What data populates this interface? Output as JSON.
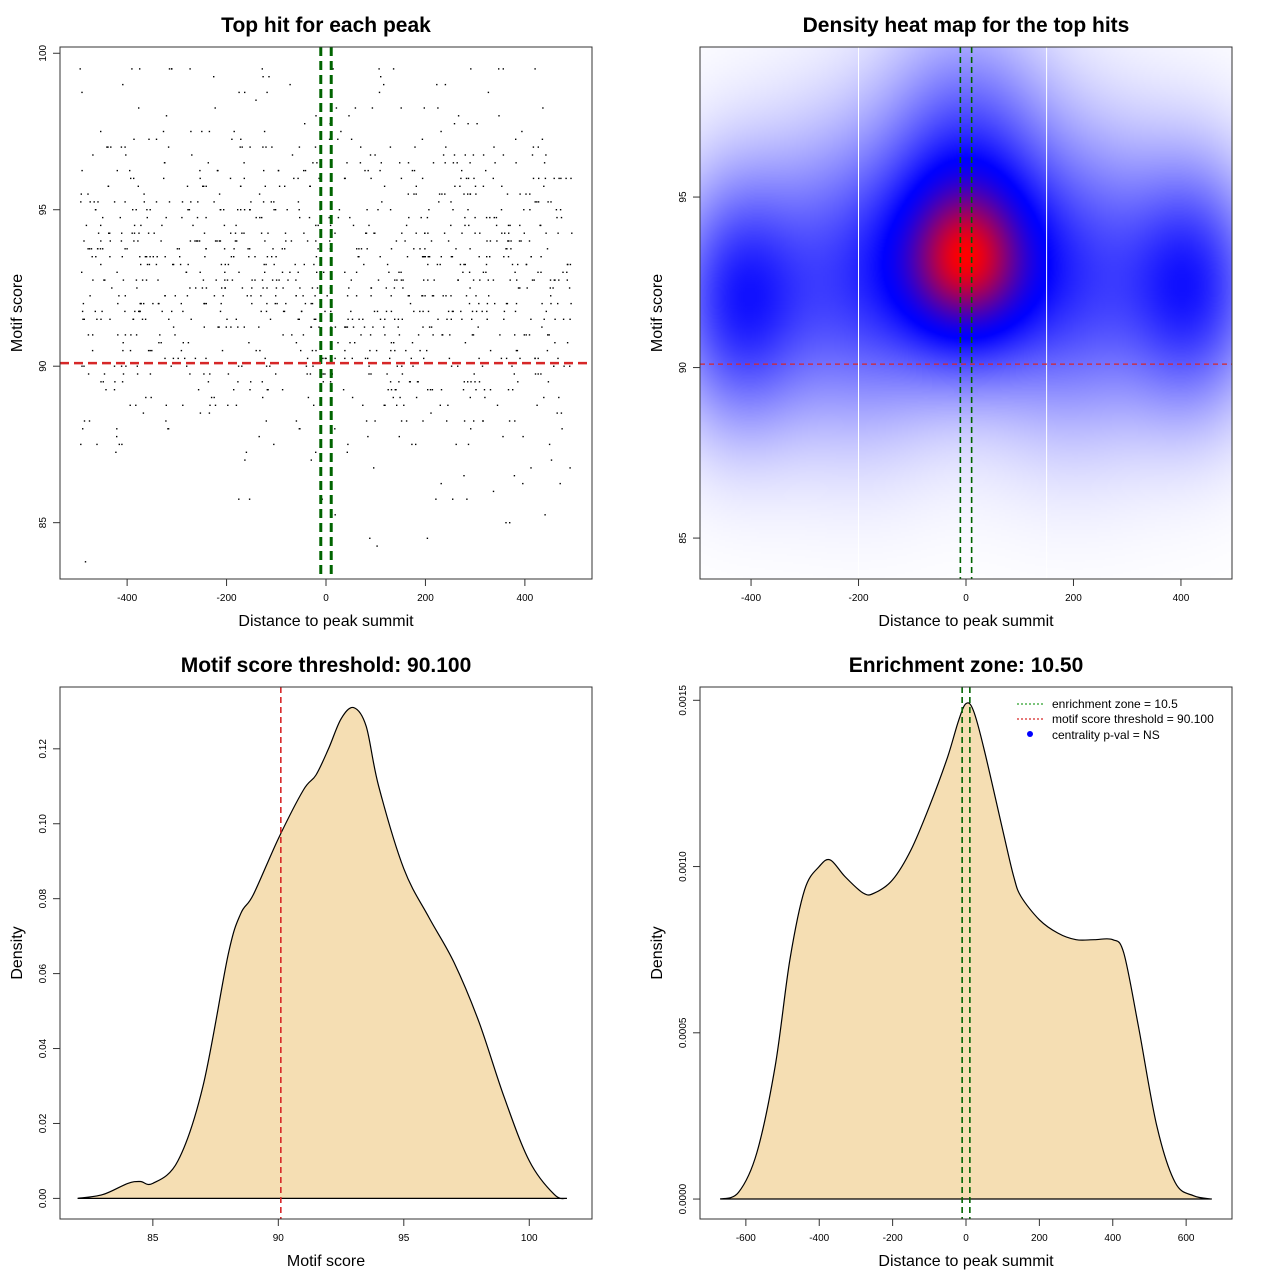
{
  "chart_data": [
    {
      "type": "scatter",
      "title": "Top hit for each peak",
      "xlabel": "Distance to peak summit",
      "ylabel": "Motif score",
      "xlim": [
        -535,
        535
      ],
      "ylim": [
        83.2,
        100.2
      ],
      "xticks": [
        "-400",
        "-200",
        "0",
        "200",
        "400"
      ],
      "xtick_values": [
        -400,
        -200,
        0,
        200,
        400
      ],
      "yticks": [
        "85",
        "90",
        "95",
        "100"
      ],
      "ytick_values": [
        85,
        90,
        95,
        100
      ],
      "n_points": 1100,
      "x_range": [
        -495,
        495
      ],
      "y_range": [
        83.8,
        99.4
      ],
      "center_lines_x": [
        -10.5,
        10.5
      ],
      "center_line_color": "#006400",
      "threshold_y": 90.1,
      "threshold_color": "#d62728"
    },
    {
      "type": "heatmap",
      "title": "Density heat map for the top hits",
      "xlabel": "Distance to peak summit",
      "ylabel": "Motif score",
      "xlim": [
        -495,
        495
      ],
      "ylim": [
        83.8,
        99.4
      ],
      "xticks": [
        "-400",
        "-200",
        "0",
        "200",
        "400"
      ],
      "xtick_values": [
        -400,
        -200,
        0,
        200,
        400
      ],
      "yticks": [
        "85",
        "90",
        "95"
      ],
      "ytick_values": [
        85,
        90,
        95
      ],
      "colormap": [
        "#ffffff",
        "#0000ff",
        "#ff0000"
      ],
      "hotspots": [
        {
          "x": 0,
          "y": 93.0,
          "weight": 1.0,
          "sx": 90,
          "sy": 1.8
        },
        {
          "x": -420,
          "y": 92.0,
          "weight": 0.55,
          "sx": 80,
          "sy": 2.2
        },
        {
          "x": 420,
          "y": 92.4,
          "weight": 0.55,
          "sx": 80,
          "sy": 2.2
        },
        {
          "x": -200,
          "y": 92.6,
          "weight": 0.45,
          "sx": 120,
          "sy": 2.6
        },
        {
          "x": 200,
          "y": 92.6,
          "weight": 0.45,
          "sx": 120,
          "sy": 2.6
        },
        {
          "x": 0,
          "y": 96.0,
          "weight": 0.4,
          "sx": 100,
          "sy": 2.4
        }
      ],
      "white_lines_x": [
        -200,
        150
      ],
      "center_lines_x": [
        -10.5,
        10.5
      ],
      "center_line_color": "#006400",
      "threshold_y": 90.1,
      "threshold_color": "#d62728"
    },
    {
      "type": "area",
      "title": "Motif score threshold: 90.100",
      "xlabel": "Motif score",
      "ylabel": "Density",
      "xlim": [
        81.3,
        102.5
      ],
      "ylim": [
        -0.0055,
        0.1365
      ],
      "xticks": [
        "85",
        "90",
        "95",
        "100"
      ],
      "xtick_values": [
        85,
        90,
        95,
        100
      ],
      "yticks": [
        "0.00",
        "0.02",
        "0.04",
        "0.06",
        "0.08",
        "0.10",
        "0.12"
      ],
      "ytick_values": [
        0,
        0.02,
        0.04,
        0.06,
        0.08,
        0.1,
        0.12
      ],
      "x": [
        82.0,
        83.0,
        84.0,
        84.5,
        85.0,
        86.0,
        87.0,
        88.0,
        88.5,
        89.0,
        90.0,
        91.0,
        91.5,
        92.0,
        92.5,
        93.0,
        93.5,
        94.0,
        95.0,
        96.0,
        97.0,
        98.0,
        99.0,
        100.0,
        101.0,
        101.5
      ],
      "y": [
        0.0,
        0.001,
        0.004,
        0.0045,
        0.004,
        0.01,
        0.03,
        0.065,
        0.076,
        0.081,
        0.096,
        0.109,
        0.113,
        0.12,
        0.128,
        0.131,
        0.126,
        0.11,
        0.088,
        0.075,
        0.063,
        0.047,
        0.027,
        0.01,
        0.001,
        0.0
      ],
      "fill_color": "#f5deb3",
      "threshold_x": 90.1,
      "threshold_color": "#d62728"
    },
    {
      "type": "area",
      "title": "Enrichment zone: 10.50",
      "xlabel": "Distance to peak summit",
      "ylabel": "Density",
      "xlim": [
        -725,
        725
      ],
      "ylim": [
        -6e-05,
        0.00154
      ],
      "xticks": [
        "-600",
        "-400",
        "-200",
        "0",
        "200",
        "400",
        "600"
      ],
      "xtick_values": [
        -600,
        -400,
        -200,
        0,
        200,
        400,
        600
      ],
      "yticks": [
        "0.0000",
        "0.0005",
        "0.0010",
        "0.0015"
      ],
      "ytick_values": [
        0,
        0.0005,
        0.001,
        0.0015
      ],
      "x": [
        -670,
        -620,
        -570,
        -520,
        -480,
        -440,
        -400,
        -370,
        -330,
        -280,
        -250,
        -200,
        -150,
        -100,
        -50,
        -20,
        0,
        20,
        50,
        100,
        130,
        150,
        200,
        250,
        300,
        350,
        400,
        430,
        470,
        520,
        570,
        620,
        670
      ],
      "y": [
        0.0,
        2e-05,
        0.00014,
        0.0004,
        0.00072,
        0.00093,
        0.001,
        0.00102,
        0.00097,
        0.00092,
        0.00092,
        0.00096,
        0.00105,
        0.00118,
        0.00133,
        0.00144,
        0.00149,
        0.00147,
        0.00135,
        0.00111,
        0.00097,
        0.00091,
        0.00084,
        0.0008,
        0.00078,
        0.00078,
        0.00078,
        0.00074,
        0.00052,
        0.00022,
        5e-05,
        1e-05,
        0.0
      ],
      "fill_color": "#f5deb3",
      "center_lines_x": [
        -10.5,
        10.5
      ],
      "center_line_color": "#006400",
      "legend_placement": "top-right",
      "legend": [
        {
          "label": "enrichment zone = 10.5",
          "color": "#2ca02c",
          "kind": "dotted"
        },
        {
          "label": "motif score threshold = 90.100",
          "color": "#d62728",
          "kind": "dotted"
        },
        {
          "label": "centrality p-val = NS",
          "color": "#0000ff",
          "kind": "dot"
        }
      ]
    }
  ]
}
